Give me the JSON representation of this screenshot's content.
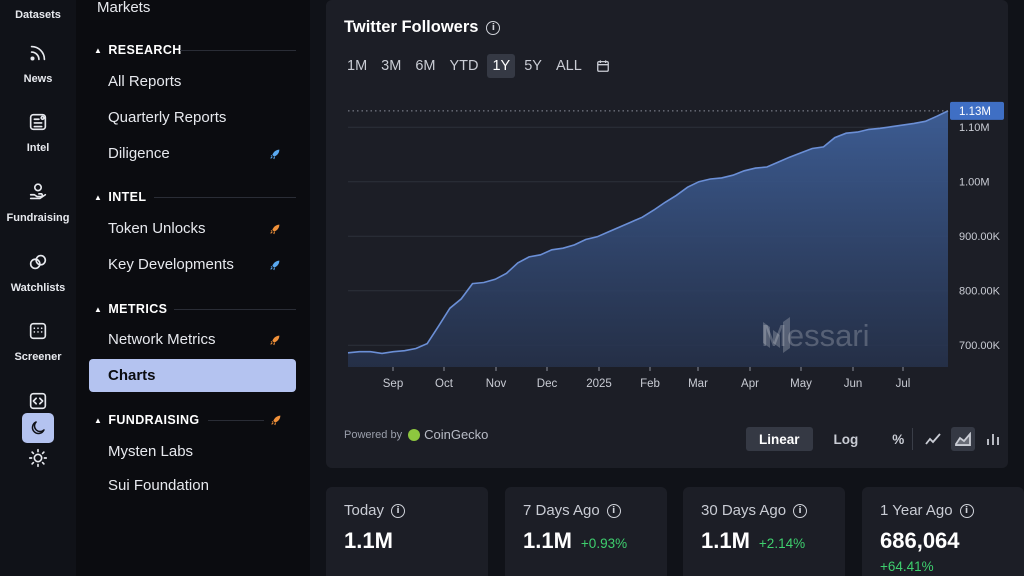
{
  "rail": {
    "items": [
      {
        "label": "Datasets",
        "icon": "none"
      },
      {
        "label": "News",
        "icon": "rss-icon"
      },
      {
        "label": "Intel",
        "icon": "intel-icon"
      },
      {
        "label": "Fundraising",
        "icon": "fundraising-icon"
      },
      {
        "label": "Watchlists",
        "icon": "watchlists-icon"
      },
      {
        "label": "Screener",
        "icon": "screener-icon"
      }
    ],
    "code_icon": "code-icon",
    "theme_icon": "moon-icon",
    "brightness_icon": "sun-icon"
  },
  "sidebar": {
    "markets_label": "Markets",
    "sections": [
      {
        "title": "RESEARCH",
        "items": [
          {
            "label": "All Reports",
            "rocket": false
          },
          {
            "label": "Quarterly Reports",
            "rocket": false
          },
          {
            "label": "Diligence",
            "rocket": true,
            "rocket_color": "#5aa9f0"
          }
        ]
      },
      {
        "title": "INTEL",
        "items": [
          {
            "label": "Token Unlocks",
            "rocket": true,
            "rocket_color": "#f0913a"
          },
          {
            "label": "Key Developments",
            "rocket": true,
            "rocket_color": "#5aa9f0"
          }
        ]
      },
      {
        "title": "METRICS",
        "items": [
          {
            "label": "Network Metrics",
            "rocket": true,
            "rocket_color": "#f0913a"
          },
          {
            "label": "Charts",
            "rocket": false,
            "active": true
          }
        ]
      },
      {
        "title": "FUNDRAISING",
        "rocket_color": "#f0913a",
        "items": [
          {
            "label": "Mysten Labs",
            "rocket": false
          },
          {
            "label": "Sui Foundation",
            "rocket": false
          }
        ]
      }
    ]
  },
  "chart_card": {
    "title": "Twitter Followers",
    "ranges": [
      "1M",
      "3M",
      "6M",
      "YTD",
      "1Y",
      "5Y",
      "ALL"
    ],
    "active_range": "1Y",
    "calendar_icon": "calendar-icon",
    "powered_by": "Powered by",
    "provider": "CoinGecko",
    "watermark": "Messari",
    "scales": [
      "Linear",
      "Log",
      "%"
    ],
    "active_scale": "Linear",
    "chart_types": [
      "line-chart-icon",
      "area-chart-icon",
      "bar-chart-icon"
    ],
    "active_chart_type": "area-chart-icon",
    "current_label": "1.13M"
  },
  "chart_data": {
    "type": "area",
    "title": "Twitter Followers",
    "xlabel": "",
    "ylabel": "",
    "x_ticks": [
      "Sep",
      "Oct",
      "Nov",
      "Dec",
      "2025",
      "Feb",
      "Mar",
      "Apr",
      "May",
      "Jun",
      "Jul"
    ],
    "y_ticks": [
      700000,
      800000,
      900000,
      1000000,
      1100000
    ],
    "y_tick_labels": [
      "700.00K",
      "800.00K",
      "900.00K",
      "1.00M",
      "1.10M"
    ],
    "ylim": [
      660000,
      1150000
    ],
    "grid": true,
    "series": [
      {
        "values": [
          686000,
          688000,
          688000,
          685000,
          688000,
          690000,
          694000,
          703000,
          735000,
          768000,
          785000,
          813000,
          815000,
          821000,
          832000,
          851000,
          862000,
          866000,
          875000,
          878000,
          884000,
          894000,
          899000,
          908000,
          917000,
          926000,
          935000,
          948000,
          962000,
          975000,
          990000,
          1000000,
          1005000,
          1007000,
          1012000,
          1020000,
          1025000,
          1027000,
          1036000,
          1045000,
          1053000,
          1061000,
          1064000,
          1081000,
          1089000,
          1091000,
          1096000,
          1098000,
          1101000,
          1104000,
          1107000,
          1111000,
          1120000,
          1130000
        ]
      }
    ]
  },
  "stats": [
    {
      "label": "Today",
      "value": "1.1M",
      "change": ""
    },
    {
      "label": "7 Days Ago",
      "value": "1.1M",
      "change": "+0.93%"
    },
    {
      "label": "30 Days Ago",
      "value": "1.1M",
      "change": "+2.14%"
    },
    {
      "label": "1 Year Ago",
      "value": "686,064",
      "change": "+64.41%"
    }
  ]
}
